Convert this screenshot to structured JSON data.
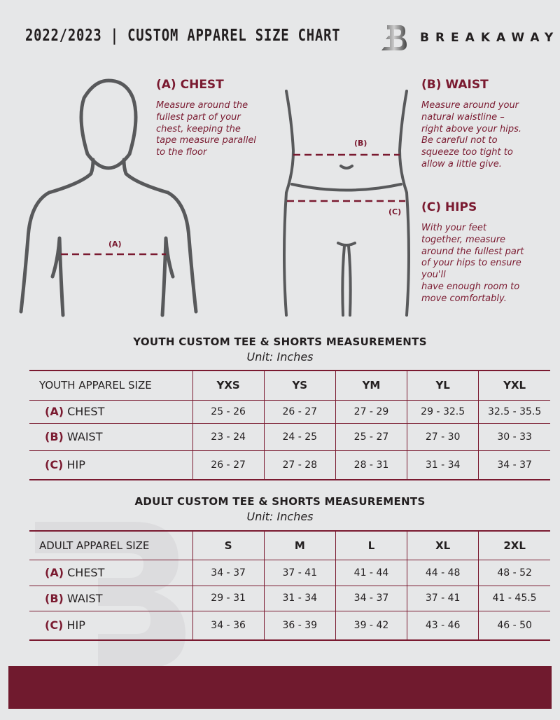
{
  "header": {
    "title": "2022/2023  |  CUSTOM APPAREL SIZE CHART",
    "brand": "BREAKAWAY",
    "logo": "B"
  },
  "colors": {
    "accent": "#7a1a30",
    "background": "#e6e7e8",
    "footer": "#701a2e"
  },
  "chest": {
    "heading": "(A) CHEST",
    "text": "Measure around the\nfullest part of your\nchest, keeping the\ntape measure parallel\nto the floor",
    "marker": "(A)"
  },
  "waist": {
    "heading": "(B) WAIST",
    "text": "Measure around your\nnatural waistline –\nright above your hips.\nBe careful not to\nsqueeze too tight to\nallow a little give.",
    "marker": "(B)"
  },
  "hips": {
    "heading": "(C) HIPS",
    "text": "With your feet\ntogether, measure\naround the fullest part\nof your hips to ensure\nyou'll\nhave enough room to\nmove comfortably.",
    "marker": "(C)"
  },
  "youth": {
    "title": "YOUTH CUSTOM TEE & SHORTS MEASUREMENTS",
    "unit": "Unit: Inches",
    "header": "YOUTH APPAREL SIZE",
    "sizes": [
      "YXS",
      "YS",
      "YM",
      "YL",
      "YXL"
    ],
    "rows": [
      {
        "code": "(A)",
        "name": "CHEST",
        "values": [
          "25 - 26",
          "26 - 27",
          "27 - 29",
          "29 - 32.5",
          "32.5 - 35.5"
        ]
      },
      {
        "code": "(B)",
        "name": "WAIST",
        "values": [
          "23 - 24",
          "24 - 25",
          "25 - 27",
          "27 - 30",
          "30 - 33"
        ]
      },
      {
        "code": "(C)",
        "name": "HIP",
        "values": [
          "26 - 27",
          "27 - 28",
          "28 - 31",
          "31 - 34",
          "34 - 37"
        ]
      }
    ]
  },
  "adult": {
    "title": "ADULT CUSTOM TEE & SHORTS MEASUREMENTS",
    "unit": "Unit: Inches",
    "header": "ADULT APPAREL SIZE",
    "sizes": [
      "S",
      "M",
      "L",
      "XL",
      "2XL"
    ],
    "rows": [
      {
        "code": "(A)",
        "name": "CHEST",
        "values": [
          "34 - 37",
          "37 - 41",
          "41 - 44",
          "44 - 48",
          "48 - 52"
        ]
      },
      {
        "code": "(B)",
        "name": "WAIST",
        "values": [
          "29 - 31",
          "31 - 34",
          "34 - 37",
          "37 - 41",
          "41 - 45.5"
        ]
      },
      {
        "code": "(C)",
        "name": "HIP",
        "values": [
          "34 - 36",
          "36 - 39",
          "39 - 42",
          "43 - 46",
          "46 - 50"
        ]
      }
    ]
  }
}
